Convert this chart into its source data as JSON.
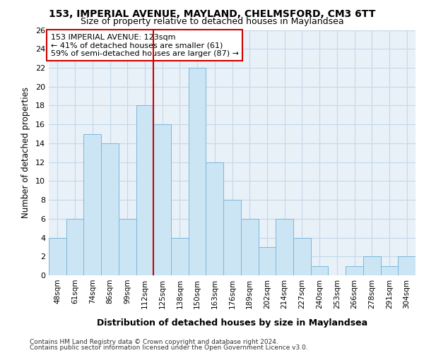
{
  "title_line1": "153, IMPERIAL AVENUE, MAYLAND, CHELMSFORD, CM3 6TT",
  "title_line2": "Size of property relative to detached houses in Maylandsea",
  "xlabel": "Distribution of detached houses by size in Maylandsea",
  "ylabel": "Number of detached properties",
  "footnote1": "Contains HM Land Registry data © Crown copyright and database right 2024.",
  "footnote2": "Contains public sector information licensed under the Open Government Licence v3.0.",
  "annotation_line1": "153 IMPERIAL AVENUE: 123sqm",
  "annotation_line2": "← 41% of detached houses are smaller (61)",
  "annotation_line3": "59% of semi-detached houses are larger (87) →",
  "bar_labels": [
    "48sqm",
    "61sqm",
    "74sqm",
    "86sqm",
    "99sqm",
    "112sqm",
    "125sqm",
    "138sqm",
    "150sqm",
    "163sqm",
    "176sqm",
    "189sqm",
    "202sqm",
    "214sqm",
    "227sqm",
    "240sqm",
    "253sqm",
    "266sqm",
    "278sqm",
    "291sqm",
    "304sqm"
  ],
  "bar_values": [
    4,
    6,
    15,
    14,
    6,
    18,
    16,
    4,
    22,
    12,
    8,
    6,
    3,
    6,
    4,
    1,
    0,
    1,
    2,
    1,
    2
  ],
  "bar_color": "#cce5f5",
  "bar_edgecolor": "#7bb8d8",
  "vline_color": "#cc0000",
  "vline_x_index": 5.5,
  "annotation_box_edgecolor": "#cc0000",
  "ylim": [
    0,
    26
  ],
  "yticks": [
    0,
    2,
    4,
    6,
    8,
    10,
    12,
    14,
    16,
    18,
    20,
    22,
    24,
    26
  ],
  "grid_color": "#c5d8e8",
  "bg_color": "#e8f0f8",
  "fig_bg": "#ffffff"
}
